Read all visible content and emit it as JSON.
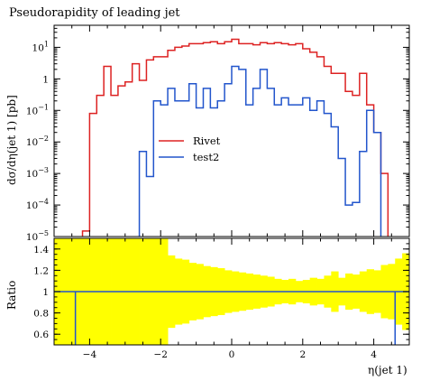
{
  "chart_data": [
    {
      "type": "line",
      "title": "Pseudorapidity of leading jet",
      "ylabel": "dσ/dη(jet 1) [pb]",
      "xlabel": "",
      "xlim": [
        -5,
        5
      ],
      "ylim": [
        1e-05,
        50
      ],
      "yscale": "log",
      "legend_position": "center-left",
      "y_ticks": [
        {
          "label": "10",
          "exp": "1",
          "value": 10
        },
        {
          "label": "1",
          "exp": "",
          "value": 1
        },
        {
          "label": "10",
          "exp": "−1",
          "value": 0.1
        },
        {
          "label": "10",
          "exp": "−2",
          "value": 0.01
        },
        {
          "label": "10",
          "exp": "−3",
          "value": 0.001
        },
        {
          "label": "10",
          "exp": "−4",
          "value": 0.0001
        },
        {
          "label": "10",
          "exp": "−5",
          "value": 1e-05
        }
      ],
      "bin_edges": [
        -5.0,
        -4.8,
        -4.6,
        -4.4,
        -4.2,
        -4.0,
        -3.8,
        -3.6,
        -3.4,
        -3.2,
        -3.0,
        -2.8,
        -2.6,
        -2.4,
        -2.2,
        -2.0,
        -1.8,
        -1.6,
        -1.4,
        -1.2,
        -1.0,
        -0.8,
        -0.6,
        -0.4,
        -0.2,
        0.0,
        0.2,
        0.4,
        0.6,
        0.8,
        1.0,
        1.2,
        1.4,
        1.6,
        1.8,
        2.0,
        2.2,
        2.4,
        2.6,
        2.8,
        3.0,
        3.2,
        3.4,
        3.6,
        3.8,
        4.0,
        4.2,
        4.4,
        4.6,
        4.8,
        5.0
      ],
      "series": [
        {
          "name": "Rivet",
          "color": "#dd2222",
          "values": [
            0,
            0,
            0,
            0,
            1.5e-05,
            0.08,
            0.3,
            2.5,
            0.3,
            0.6,
            0.8,
            3,
            0.9,
            4,
            5,
            5,
            8,
            10,
            11,
            13,
            13,
            14,
            15,
            13,
            15,
            18,
            13,
            13,
            12,
            14,
            13,
            14,
            13,
            12,
            13,
            9,
            7,
            5,
            2.5,
            1.5,
            1.5,
            0.4,
            0.3,
            1.5,
            0.15,
            0.02,
            0.001,
            0,
            0,
            0
          ]
        },
        {
          "name": "test2",
          "color": "#2255cc",
          "values": [
            0,
            0,
            0,
            0,
            0,
            0,
            0,
            0,
            0,
            0,
            0,
            0,
            0.005,
            0.0008,
            0.2,
            0.15,
            0.5,
            0.2,
            0.2,
            0.7,
            0.12,
            0.5,
            0.12,
            0.2,
            0.7,
            2.5,
            2,
            0.15,
            0.5,
            2,
            0.5,
            0.15,
            0.25,
            0.15,
            0.15,
            0.25,
            0.1,
            0.2,
            0.08,
            0.03,
            0.003,
            0.0001,
            0.00012,
            0.005,
            0.1,
            0.02,
            0,
            0,
            0,
            0
          ]
        }
      ]
    },
    {
      "type": "line",
      "title": "",
      "xlabel": "η(jet 1)",
      "ylabel": "Ratio",
      "xlim": [
        -5,
        5
      ],
      "ylim": [
        0.5,
        1.5
      ],
      "x_ticks": [
        -4,
        -2,
        0,
        2,
        4
      ],
      "x_tick_labels": [
        "−4",
        "−2",
        "0",
        "2",
        "4"
      ],
      "y_ticks": [
        0.6,
        0.8,
        1,
        1.2,
        1.4
      ],
      "y_tick_labels": [
        "0.6",
        "0.8",
        "1",
        "1.2",
        "1.4"
      ],
      "band_color": "#ffff00",
      "band_halfwidth": [
        0.5,
        0.5,
        0.5,
        0.5,
        0.5,
        0.5,
        0.5,
        0.5,
        0.5,
        0.5,
        0.5,
        0.5,
        0.5,
        0.5,
        0.5,
        0.5,
        0.34,
        0.31,
        0.3,
        0.27,
        0.26,
        0.24,
        0.23,
        0.22,
        0.2,
        0.19,
        0.18,
        0.17,
        0.16,
        0.15,
        0.14,
        0.12,
        0.11,
        0.12,
        0.1,
        0.11,
        0.13,
        0.12,
        0.15,
        0.19,
        0.13,
        0.17,
        0.16,
        0.19,
        0.21,
        0.2,
        0.25,
        0.26,
        0.31,
        0.36
      ],
      "series": [
        {
          "name": "test2",
          "color": "#2255cc",
          "values": [
            1,
            1,
            1,
            1,
            1,
            1,
            1,
            1,
            1,
            1,
            1,
            1,
            1,
            1,
            1,
            1,
            1,
            1,
            1,
            1,
            1,
            1,
            1,
            1,
            1,
            1,
            1,
            1,
            1,
            1,
            1,
            1,
            1,
            1,
            1,
            1,
            1,
            1,
            1,
            1,
            1,
            1,
            1,
            1,
            1,
            1,
            1,
            1,
            1,
            1
          ]
        }
      ]
    }
  ]
}
